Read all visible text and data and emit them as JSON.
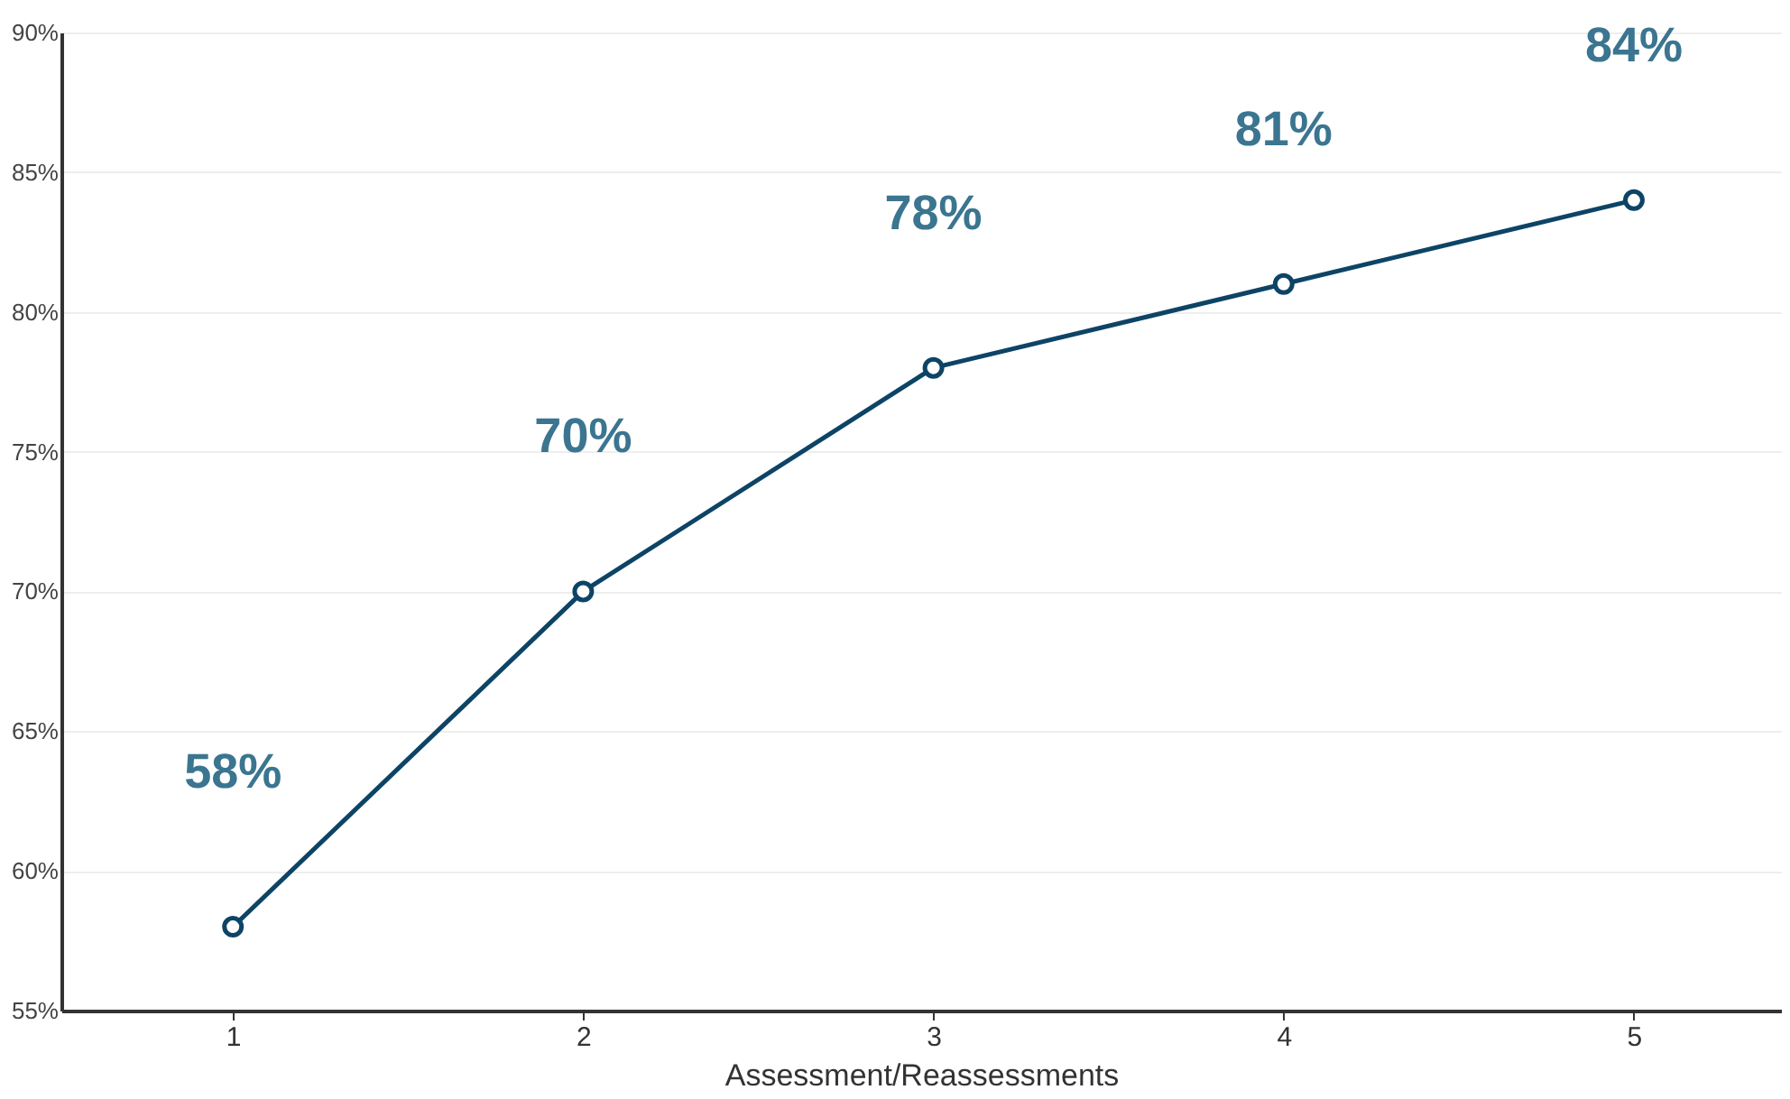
{
  "chart_data": {
    "type": "line",
    "xlabel": "Assessment/Reassessments",
    "categories": [
      "1",
      "2",
      "3",
      "4",
      "5"
    ],
    "series": [
      {
        "color": "#0d4466",
        "values": [
          58,
          70,
          78,
          81,
          84
        ],
        "value_labels": [
          "58%",
          "70%",
          "78%",
          "81%",
          "84%"
        ]
      }
    ],
    "ylim": [
      55,
      90
    ],
    "yticks": [
      {
        "value": 55,
        "label": "55%"
      },
      {
        "value": 60,
        "label": "60%"
      },
      {
        "value": 65,
        "label": "65%"
      },
      {
        "value": 70,
        "label": "70%"
      },
      {
        "value": 75,
        "label": "75%"
      },
      {
        "value": 80,
        "label": "80%"
      },
      {
        "value": 85,
        "label": "85%"
      },
      {
        "value": 90,
        "label": "90%"
      }
    ],
    "grid": "y",
    "marker": "circle",
    "line_style": "solid"
  }
}
